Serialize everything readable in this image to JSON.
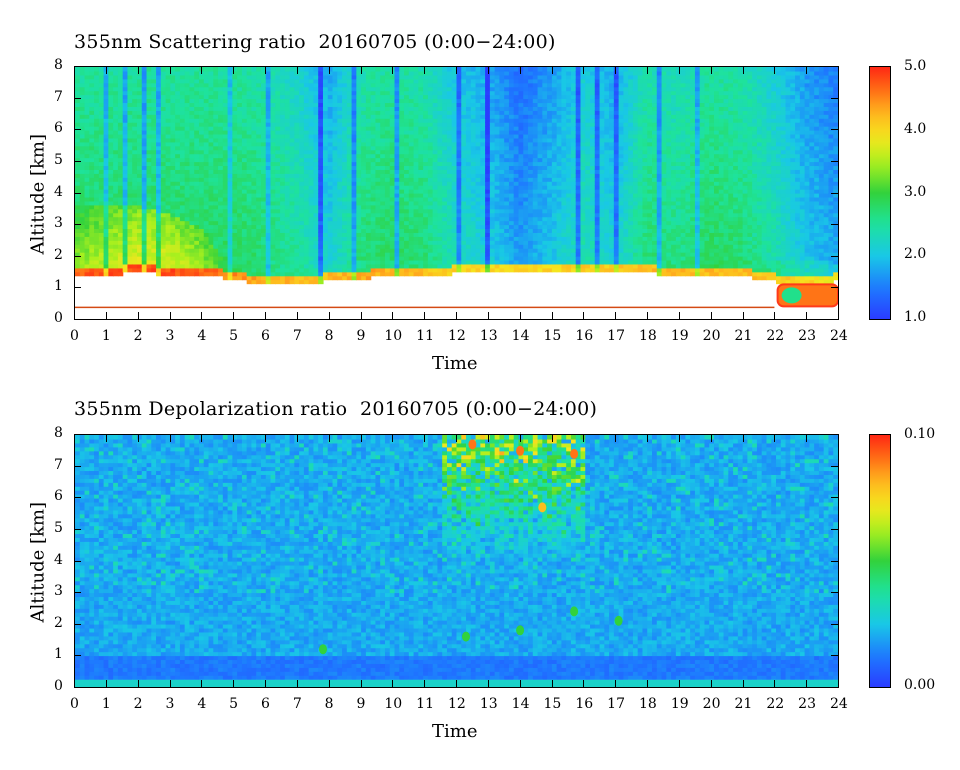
{
  "chart_data": [
    {
      "type": "heatmap",
      "title": "355nm Scattering ratio  20160705 (0:00−24:00)",
      "xlabel": "Time",
      "ylabel": "Altitude [km]",
      "xlim": [
        0,
        24
      ],
      "ylim": [
        0,
        8
      ],
      "x_ticks": [
        "0",
        "1",
        "2",
        "3",
        "4",
        "5",
        "6",
        "7",
        "8",
        "9",
        "10",
        "11",
        "12",
        "13",
        "14",
        "15",
        "16",
        "17",
        "18",
        "19",
        "20",
        "21",
        "22",
        "23",
        "24"
      ],
      "y_ticks": [
        "0",
        "1",
        "2",
        "3",
        "4",
        "5",
        "6",
        "7",
        "8"
      ],
      "colorbar": {
        "range": [
          1.0,
          5.0
        ],
        "labels": [
          "5.0",
          "4.0",
          "3.0",
          "2.0",
          "1.0"
        ],
        "label_values": [
          5.0,
          4.0,
          3.0,
          2.0,
          1.0
        ]
      },
      "ground_line_altitude_km": 0.37,
      "boundary_layer_top_km": [
        [
          0,
          1.4
        ],
        [
          2,
          1.45
        ],
        [
          4,
          1.4
        ],
        [
          5,
          1.25
        ],
        [
          6,
          1.1
        ],
        [
          7,
          1.15
        ],
        [
          8,
          1.2
        ],
        [
          9,
          1.3
        ],
        [
          10,
          1.35
        ],
        [
          11,
          1.35
        ],
        [
          12,
          1.45
        ],
        [
          13,
          1.5
        ],
        [
          14,
          1.5
        ],
        [
          15,
          1.55
        ],
        [
          16,
          1.5
        ],
        [
          17,
          1.5
        ],
        [
          18,
          1.45
        ],
        [
          19,
          1.4
        ],
        [
          20,
          1.4
        ],
        [
          21,
          1.35
        ],
        [
          22,
          1.2
        ],
        [
          23,
          1.1
        ],
        [
          24,
          1.2
        ]
      ],
      "aerosol_layer_top_km": [
        [
          0,
          3.6
        ],
        [
          1,
          3.7
        ],
        [
          2,
          3.6
        ],
        [
          3,
          3.3
        ],
        [
          4,
          2.9
        ],
        [
          4.5,
          2.2
        ],
        [
          5,
          1.9
        ],
        [
          8,
          1.8
        ],
        [
          12,
          1.9
        ],
        [
          16,
          1.8
        ],
        [
          20,
          2.0
        ],
        [
          22,
          1.9
        ],
        [
          24,
          1.8
        ]
      ],
      "columns": [
        {
          "time": 0.0,
          "near_surface": 4.7,
          "mid": 2.7,
          "upper": 2.7
        },
        {
          "time": 1.0,
          "near_surface": 4.8,
          "mid": 2.9,
          "upper": 2.7
        },
        {
          "time": 2.0,
          "near_surface": 4.8,
          "mid": 3.1,
          "upper": 2.7
        },
        {
          "time": 3.0,
          "near_surface": 4.8,
          "mid": 3.1,
          "upper": 2.7
        },
        {
          "time": 4.0,
          "near_surface": 4.7,
          "mid": 2.9,
          "upper": 2.7
        },
        {
          "time": 5.0,
          "near_surface": 4.5,
          "mid": 2.6,
          "upper": 2.7
        },
        {
          "time": 6.0,
          "near_surface": 4.3,
          "mid": 2.4,
          "upper": 2.6
        },
        {
          "time": 7.0,
          "near_surface": 4.2,
          "mid": 2.3,
          "upper": 2.4
        },
        {
          "time": 8.0,
          "near_surface": 4.2,
          "mid": 2.0,
          "upper": 2.0
        },
        {
          "time": 9.0,
          "near_surface": 4.3,
          "mid": 2.4,
          "upper": 2.6
        },
        {
          "time": 10.0,
          "near_surface": 4.3,
          "mid": 2.5,
          "upper": 2.7
        },
        {
          "time": 11.0,
          "near_surface": 4.2,
          "mid": 2.4,
          "upper": 2.6
        },
        {
          "time": 12.0,
          "near_surface": 4.0,
          "mid": 2.1,
          "upper": 2.2
        },
        {
          "time": 13.0,
          "near_surface": 4.0,
          "mid": 2.0,
          "upper": 2.0
        },
        {
          "time": 14.0,
          "near_surface": 4.0,
          "mid": 1.5,
          "upper": 1.6
        },
        {
          "time": 15.0,
          "near_surface": 4.0,
          "mid": 1.8,
          "upper": 1.9
        },
        {
          "time": 16.0,
          "near_surface": 4.1,
          "mid": 2.2,
          "upper": 2.3
        },
        {
          "time": 17.0,
          "near_surface": 4.1,
          "mid": 1.9,
          "upper": 2.0
        },
        {
          "time": 18.0,
          "near_surface": 4.2,
          "mid": 2.5,
          "upper": 2.6
        },
        {
          "time": 19.0,
          "near_surface": 4.2,
          "mid": 2.4,
          "upper": 2.5
        },
        {
          "time": 20.0,
          "near_surface": 4.2,
          "mid": 2.6,
          "upper": 2.7
        },
        {
          "time": 21.0,
          "near_surface": 4.2,
          "mid": 2.5,
          "upper": 2.6
        },
        {
          "time": 22.0,
          "near_surface": 4.1,
          "mid": 2.3,
          "upper": 2.3
        },
        {
          "time": 23.0,
          "near_surface": 4.0,
          "mid": 2.0,
          "upper": 1.9
        },
        {
          "time": 24.0,
          "near_surface": 3.8,
          "mid": 1.8,
          "upper": 1.7
        }
      ]
    },
    {
      "type": "heatmap",
      "title": "355nm Depolarization ratio  20160705 (0:00−24:00)",
      "xlabel": "Time",
      "ylabel": "Altitude [km]",
      "xlim": [
        0,
        24
      ],
      "ylim": [
        0,
        8
      ],
      "x_ticks": [
        "0",
        "1",
        "2",
        "3",
        "4",
        "5",
        "6",
        "7",
        "8",
        "9",
        "10",
        "11",
        "12",
        "13",
        "14",
        "15",
        "16",
        "17",
        "18",
        "19",
        "20",
        "21",
        "22",
        "23",
        "24"
      ],
      "y_ticks": [
        "0",
        "1",
        "2",
        "3",
        "4",
        "5",
        "6",
        "7",
        "8"
      ],
      "colorbar": {
        "range": [
          0.0,
          0.1
        ],
        "labels": [
          "0.10",
          "0.00"
        ],
        "label_values": [
          0.1,
          0.0
        ]
      },
      "background_value": 0.02,
      "surface_band": {
        "altitude_km": [
          0.0,
          0.3
        ],
        "value": 0.03
      },
      "noisy_region": {
        "time": [
          11.5,
          16.0
        ],
        "altitude_km": [
          4.0,
          8.0
        ],
        "max_value": 0.1
      },
      "hotspots": [
        {
          "time": 12.5,
          "altitude_km": 7.7,
          "value": 0.09
        },
        {
          "time": 14.0,
          "altitude_km": 7.5,
          "value": 0.09
        },
        {
          "time": 15.7,
          "altitude_km": 7.4,
          "value": 0.09
        },
        {
          "time": 14.7,
          "altitude_km": 5.7,
          "value": 0.08
        },
        {
          "time": 15.7,
          "altitude_km": 2.4,
          "value": 0.05
        },
        {
          "time": 17.1,
          "altitude_km": 2.1,
          "value": 0.05
        },
        {
          "time": 7.8,
          "altitude_km": 1.2,
          "value": 0.05
        },
        {
          "time": 12.3,
          "altitude_km": 1.6,
          "value": 0.05
        },
        {
          "time": 14.0,
          "altitude_km": 1.8,
          "value": 0.05
        }
      ]
    }
  ]
}
